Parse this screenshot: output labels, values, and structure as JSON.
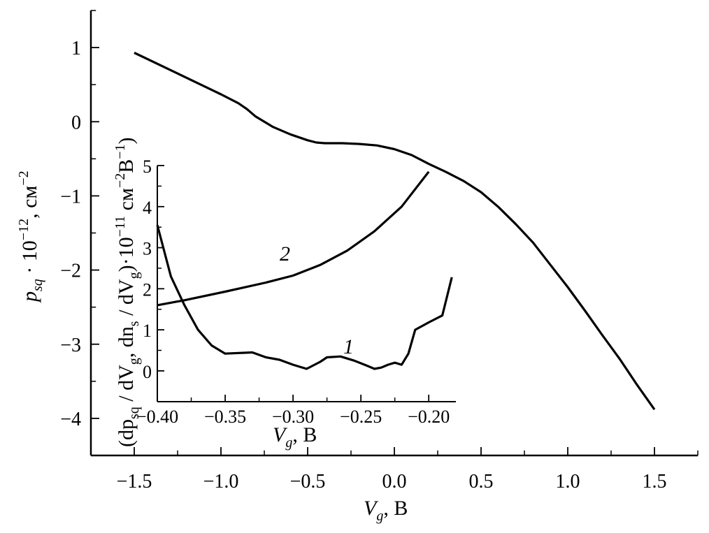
{
  "chart_data": [
    {
      "id": "main",
      "type": "line",
      "xlim": [
        -1.75,
        1.75
      ],
      "ylim": [
        -4.5,
        1.5
      ],
      "x_ticks": [
        -1.5,
        -1.0,
        -0.5,
        0.0,
        0.5,
        1.0,
        1.5
      ],
      "x_tick_labels": [
        "−1.5",
        "−1.0",
        "−0.5",
        "0.0",
        "0.5",
        "1.0",
        "1.5"
      ],
      "y_ticks": [
        1,
        0,
        -1,
        -2,
        -3,
        -4
      ],
      "y_tick_labels": [
        "1",
        "0",
        "−1",
        "−2",
        "−3",
        "−4"
      ],
      "xlabel": {
        "var": "V",
        "sub": "g",
        "unit": ", В"
      },
      "ylabel": {
        "var": "p",
        "sub": "sq",
        "mid": " · 10",
        "sup": "−12",
        "unit": ", см",
        "unit_sup": "−2"
      },
      "series": [
        {
          "points": [
            [
              -1.5,
              0.93
            ],
            [
              -1.25,
              0.65
            ],
            [
              -1.0,
              0.37
            ],
            [
              -0.9,
              0.25
            ],
            [
              -0.85,
              0.17
            ],
            [
              -0.8,
              0.07
            ],
            [
              -0.7,
              -0.07
            ],
            [
              -0.6,
              -0.17
            ],
            [
              -0.5,
              -0.25
            ],
            [
              -0.45,
              -0.28
            ],
            [
              -0.4,
              -0.29
            ],
            [
              -0.3,
              -0.29
            ],
            [
              -0.2,
              -0.3
            ],
            [
              -0.1,
              -0.32
            ],
            [
              0.0,
              -0.37
            ],
            [
              0.1,
              -0.45
            ],
            [
              0.2,
              -0.57
            ],
            [
              0.3,
              -0.68
            ],
            [
              0.4,
              -0.8
            ],
            [
              0.5,
              -0.95
            ],
            [
              0.6,
              -1.15
            ],
            [
              0.7,
              -1.38
            ],
            [
              0.8,
              -1.63
            ],
            [
              0.9,
              -1.93
            ],
            [
              1.0,
              -2.23
            ],
            [
              1.1,
              -2.55
            ],
            [
              1.2,
              -2.88
            ],
            [
              1.3,
              -3.2
            ],
            [
              1.4,
              -3.55
            ],
            [
              1.5,
              -3.88
            ]
          ]
        }
      ]
    },
    {
      "id": "inset",
      "type": "line",
      "xlim": [
        -0.4,
        -0.18
      ],
      "ylim": [
        -0.75,
        5
      ],
      "x_ticks": [
        -0.4,
        -0.35,
        -0.3,
        -0.25,
        -0.2
      ],
      "x_tick_labels": [
        "−0.40",
        "−0.35",
        "−0.30",
        "−0.25",
        "−0.20"
      ],
      "y_ticks": [
        0,
        1,
        2,
        3,
        4,
        5
      ],
      "y_tick_labels": [
        "0",
        "1",
        "2",
        "3",
        "4",
        "5"
      ],
      "xlabel": {
        "var": "V",
        "sub": "g",
        "unit": ", В"
      },
      "ylabel": {
        "text": "(dp",
        "sub1": "sq",
        "t2": " / dV",
        "sub2": "g",
        "t3": ", dn",
        "sub3": "s",
        "t4": " / dV",
        "sub4": "g",
        "t5": ")·10",
        "sup1": "−11",
        "t6": " см",
        "sup2": "−2",
        "t7": "В",
        "sup3": "−1",
        "t8": ")"
      },
      "series": [
        {
          "name": "1",
          "points": [
            [
              -0.4,
              3.55
            ],
            [
              -0.39,
              2.3
            ],
            [
              -0.38,
              1.6
            ],
            [
              -0.37,
              1.0
            ],
            [
              -0.36,
              0.62
            ],
            [
              -0.35,
              0.42
            ],
            [
              -0.33,
              0.45
            ],
            [
              -0.32,
              0.33
            ],
            [
              -0.31,
              0.27
            ],
            [
              -0.3,
              0.15
            ],
            [
              -0.29,
              0.05
            ],
            [
              -0.28,
              0.22
            ],
            [
              -0.275,
              0.33
            ],
            [
              -0.265,
              0.35
            ],
            [
              -0.255,
              0.25
            ],
            [
              -0.245,
              0.12
            ],
            [
              -0.24,
              0.05
            ],
            [
              -0.235,
              0.08
            ],
            [
              -0.23,
              0.15
            ],
            [
              -0.225,
              0.2
            ],
            [
              -0.22,
              0.15
            ],
            [
              -0.215,
              0.42
            ],
            [
              -0.21,
              1.0
            ],
            [
              -0.2,
              1.18
            ],
            [
              -0.19,
              1.35
            ],
            [
              -0.183,
              2.28
            ]
          ]
        },
        {
          "name": "2",
          "points": [
            [
              -0.4,
              1.6
            ],
            [
              -0.38,
              1.72
            ],
            [
              -0.35,
              1.93
            ],
            [
              -0.32,
              2.15
            ],
            [
              -0.3,
              2.32
            ],
            [
              -0.28,
              2.58
            ],
            [
              -0.26,
              2.93
            ],
            [
              -0.24,
              3.4
            ],
            [
              -0.22,
              4.0
            ],
            [
              -0.2,
              4.85
            ]
          ]
        }
      ]
    }
  ]
}
